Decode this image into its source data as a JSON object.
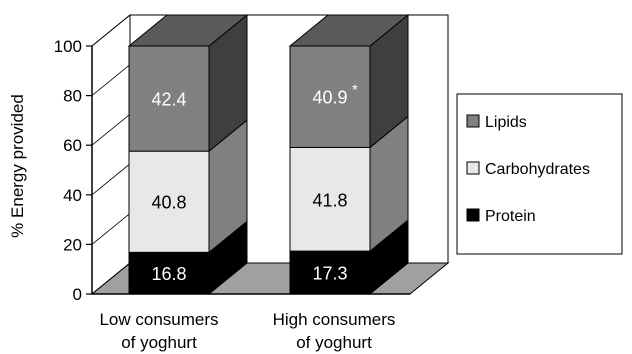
{
  "chart_data": {
    "type": "bar",
    "stacked": true,
    "three_d": true,
    "categories": [
      [
        "Low  consumers",
        "of yoghurt"
      ],
      [
        "High consumers",
        "of yoghurt"
      ]
    ],
    "series": [
      {
        "name": "Protein",
        "values": [
          16.8,
          17.3
        ],
        "labels": [
          "16.8",
          "17.3"
        ],
        "color": "#000000",
        "side": "#000000",
        "top": "#1a1a1a",
        "label_color": "#ffffff"
      },
      {
        "name": "Carbohydrates",
        "values": [
          40.8,
          41.8
        ],
        "labels": [
          "40.8",
          "41.8"
        ],
        "color": "#e8e8e8",
        "side": "#808080",
        "top": "#e8e8e8",
        "label_color": "#000000"
      },
      {
        "name": "Lipids",
        "values": [
          42.4,
          40.9
        ],
        "labels": [
          "42.4",
          "40.9"
        ],
        "color": "#808080",
        "side": "#3f3f3f",
        "top": "#5a5a5a",
        "label_color": "#ffffff"
      }
    ],
    "annotations": [
      {
        "series": "Lipids",
        "category_index": 1,
        "text": "*"
      }
    ],
    "ylabel": "% Energy provided",
    "xlabel": "",
    "ylim": [
      0,
      100
    ],
    "yticks": [
      0,
      20,
      40,
      60,
      80,
      100
    ],
    "legend": {
      "placement": "right",
      "order": [
        "Lipids",
        "Carbohydrates",
        "Protein"
      ]
    },
    "floor_color": "#a0a0a0"
  }
}
